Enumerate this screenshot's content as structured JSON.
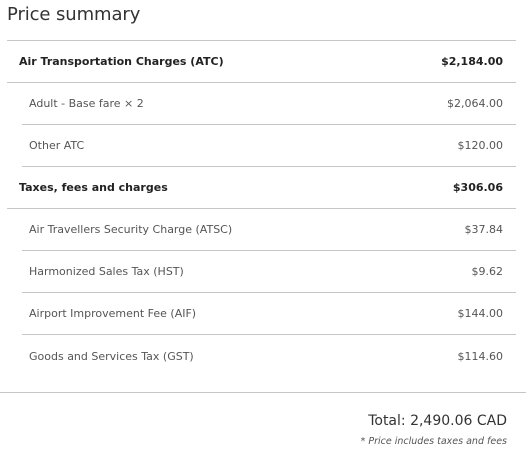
{
  "title": "Price summary",
  "groups": [
    {
      "label": "Air Transportation Charges (ATC)",
      "amount": "$2,184.00",
      "items": [
        {
          "label": "Adult - Base fare × 2",
          "amount": "$2,064.00"
        },
        {
          "label": "Other ATC",
          "amount": "$120.00"
        }
      ]
    },
    {
      "label": "Taxes, fees and charges",
      "amount": "$306.06",
      "items": [
        {
          "label": "Air Travellers Security Charge (ATSC)",
          "amount": "$37.84"
        },
        {
          "label": "Harmonized Sales Tax (HST)",
          "amount": "$9.62"
        },
        {
          "label": "Airport Improvement Fee (AIF)",
          "amount": "$144.00"
        },
        {
          "label": "Goods and Services Tax (GST)",
          "amount": "$114.60"
        }
      ]
    }
  ],
  "total": "Total: 2,490.06 CAD",
  "note": "* Price includes taxes and fees"
}
